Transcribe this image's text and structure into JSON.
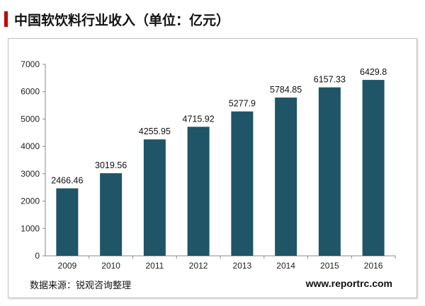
{
  "title": "中国软饮料行业收入（单位：亿元）",
  "source": "数据来源：锐观咨询整理",
  "website": "www.reportrc.com",
  "colors": {
    "bar": "#1f5566",
    "accent": "#c00000"
  },
  "chart_data": {
    "type": "bar",
    "title": "中国软饮料行业收入（单位：亿元）",
    "xlabel": "",
    "ylabel": "",
    "categories": [
      "2009",
      "2010",
      "2011",
      "2012",
      "2013",
      "2014",
      "2015",
      "2016"
    ],
    "values": [
      2466.46,
      3019.56,
      4255.95,
      4715.92,
      5277.9,
      5784.85,
      6157.33,
      6429.8
    ],
    "value_labels": [
      "2466.46",
      "3019.56",
      "4255.95",
      "4715.92",
      "5277.9",
      "5784.85",
      "6157.33",
      "6429.8"
    ],
    "ylim": [
      0,
      7000
    ],
    "yticks": [
      "0",
      "1000",
      "2000",
      "3000",
      "4000",
      "5000",
      "6000",
      "7000"
    ],
    "grid": false,
    "legend": "none"
  }
}
